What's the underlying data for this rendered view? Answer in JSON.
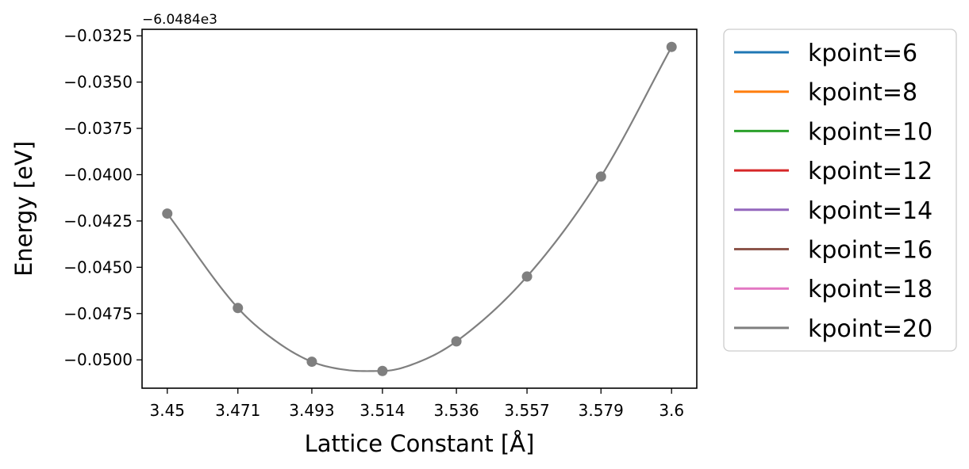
{
  "chart_data": {
    "type": "line",
    "title": "",
    "xlabel": "Lattice Constant [Å]",
    "ylabel": "Energy [eV]",
    "y_offset_label": "−6.0484e3",
    "xlim": [
      3.4425,
      3.6075
    ],
    "ylim": [
      -0.05153,
      -0.03215
    ],
    "x_ticks": [
      3.45,
      3.471,
      3.493,
      3.514,
      3.536,
      3.557,
      3.579,
      3.6
    ],
    "x_tick_labels": [
      "3.45",
      "3.471",
      "3.493",
      "3.514",
      "3.536",
      "3.557",
      "3.579",
      "3.6"
    ],
    "y_ticks": [
      -0.0325,
      -0.035,
      -0.0375,
      -0.04,
      -0.0425,
      -0.045,
      -0.0475,
      -0.05
    ],
    "y_tick_labels": [
      "−0.0325",
      "−0.0350",
      "−0.0375",
      "−0.0400",
      "−0.0425",
      "−0.0450",
      "−0.0475",
      "−0.0500"
    ],
    "grid": false,
    "legend_position": "outside-right",
    "points": {
      "x": [
        3.45,
        3.471,
        3.493,
        3.514,
        3.536,
        3.557,
        3.579,
        3.6
      ],
      "y": [
        -0.0421,
        -0.0472,
        -0.0501,
        -0.0506,
        -0.049,
        -0.0455,
        -0.0401,
        -0.0331
      ],
      "color": "#7f7f7f"
    },
    "fit_curve": {
      "x": [
        3.45,
        3.471,
        3.482,
        3.493,
        3.5035,
        3.514,
        3.525,
        3.536,
        3.557,
        3.579,
        3.6
      ],
      "y": [
        -0.0421,
        -0.0472,
        -0.04895,
        -0.0501,
        -0.05055,
        -0.0506,
        -0.0501,
        -0.049,
        -0.0455,
        -0.0401,
        -0.0331
      ]
    },
    "series": [
      {
        "name": "kpoint=6",
        "color": "#1f77b4"
      },
      {
        "name": "kpoint=8",
        "color": "#ff7f0e"
      },
      {
        "name": "kpoint=10",
        "color": "#2ca02c"
      },
      {
        "name": "kpoint=12",
        "color": "#d62728"
      },
      {
        "name": "kpoint=14",
        "color": "#9467bd"
      },
      {
        "name": "kpoint=16",
        "color": "#8c564b"
      },
      {
        "name": "kpoint=18",
        "color": "#e377c2"
      },
      {
        "name": "kpoint=20",
        "color": "#7f7f7f"
      }
    ]
  }
}
